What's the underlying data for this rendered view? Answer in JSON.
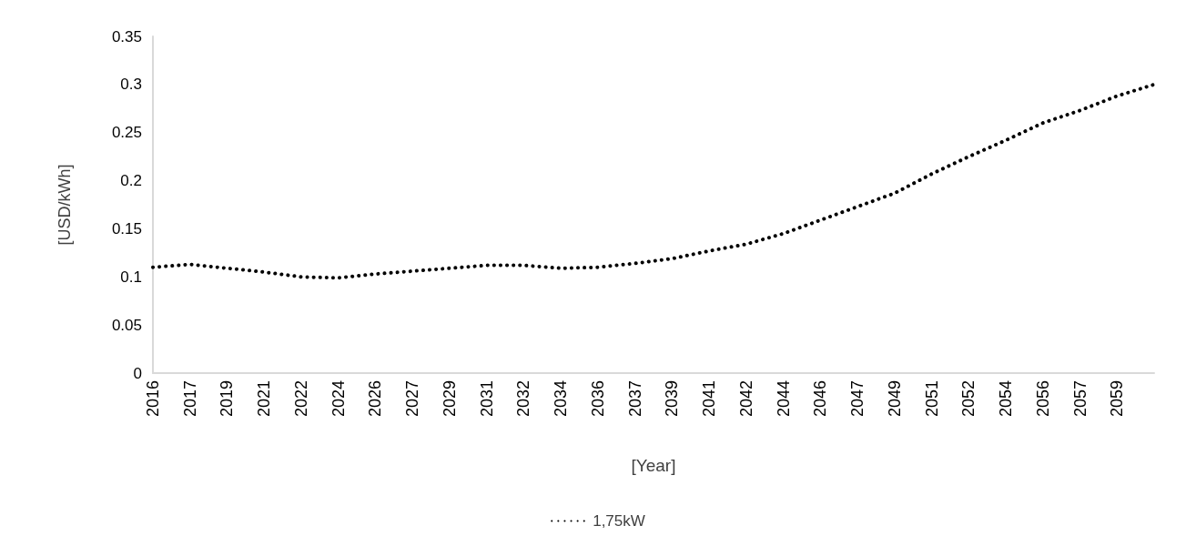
{
  "chart_data": {
    "type": "line",
    "xlabel": "[Year]",
    "ylabel": "[USD/kWh]",
    "categories": [
      "2016",
      "2017",
      "2019",
      "2021",
      "2022",
      "2024",
      "2026",
      "2027",
      "2029",
      "2031",
      "2032",
      "2034",
      "2036",
      "2037",
      "2039",
      "2041",
      "2042",
      "2044",
      "2046",
      "2047",
      "2049",
      "2051",
      "2052",
      "2054",
      "2056",
      "2057",
      "2059",
      null
    ],
    "series": [
      {
        "name": "1,75kW",
        "color": "#000000",
        "values": [
          0.11,
          0.113,
          0.109,
          0.105,
          0.1,
          0.099,
          0.103,
          0.106,
          0.109,
          0.112,
          0.112,
          0.109,
          0.11,
          0.114,
          0.119,
          0.127,
          0.134,
          0.145,
          0.159,
          0.173,
          0.187,
          0.207,
          0.225,
          0.242,
          0.26,
          0.273,
          0.288,
          0.3
        ]
      }
    ],
    "ylim": [
      0,
      0.35
    ],
    "yticks": [
      0,
      0.05,
      0.1,
      0.15,
      0.2,
      0.25,
      0.3,
      0.35
    ],
    "line_style": "dotted",
    "marker": "none",
    "legend": "bottom",
    "grid": false
  }
}
